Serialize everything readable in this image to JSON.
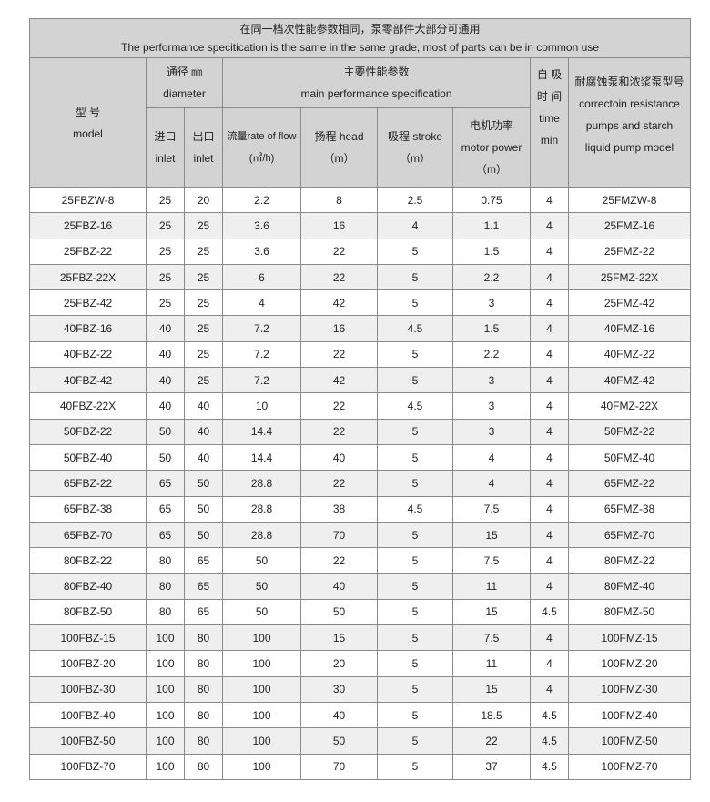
{
  "title": {
    "zh": "在同一档次性能参数相同，泵零部件大部分可通用",
    "en": "The performance specitication is the same in the same grade, most of parts can be in common use"
  },
  "header": {
    "model_zh": "型 号",
    "model_en": "model",
    "diameter_zh": "通径 ㎜",
    "diameter_en": "diameter",
    "main_zh": "主要性能参数",
    "main_en": "main performance specification",
    "time_zh1": "自 吸",
    "time_zh2": "时 间",
    "time_en1": "time",
    "time_en2": "min",
    "alt_zh": "耐腐蚀泵和浓浆泵型号",
    "alt_en1": "correctoin resistance",
    "alt_en2": "pumps and starch",
    "alt_en3": "liquid pump model",
    "inlet_zh": "进口",
    "inlet_en": "inlet",
    "outlet_zh": "出口",
    "outlet_en": "inlet",
    "flow_zh": "流量rate of flow",
    "flow_unit": "(㎥/h)",
    "head_zh": "扬程 head",
    "head_unit": "（m）",
    "stroke_zh": "吸程 stroke",
    "stroke_unit": "（m）",
    "power_zh": "电机功率",
    "power_en": "motor power",
    "power_unit": "（m）"
  },
  "rows": [
    [
      "25FBZW-8",
      "25",
      "20",
      "2.2",
      "8",
      "2.5",
      "0.75",
      "4",
      "25FMZW-8"
    ],
    [
      "25FBZ-16",
      "25",
      "25",
      "3.6",
      "16",
      "4",
      "1.1",
      "4",
      "25FMZ-16"
    ],
    [
      "25FBZ-22",
      "25",
      "25",
      "3.6",
      "22",
      "5",
      "1.5",
      "4",
      "25FMZ-22"
    ],
    [
      "25FBZ-22X",
      "25",
      "25",
      "6",
      "22",
      "5",
      "2.2",
      "4",
      "25FMZ-22X"
    ],
    [
      "25FBZ-42",
      "25",
      "25",
      "4",
      "42",
      "5",
      "3",
      "4",
      "25FMZ-42"
    ],
    [
      "40FBZ-16",
      "40",
      "25",
      "7.2",
      "16",
      "4.5",
      "1.5",
      "4",
      "40FMZ-16"
    ],
    [
      "40FBZ-22",
      "40",
      "25",
      "7.2",
      "22",
      "5",
      "2.2",
      "4",
      "40FMZ-22"
    ],
    [
      "40FBZ-42",
      "40",
      "25",
      "7.2",
      "42",
      "5",
      "3",
      "4",
      "40FMZ-42"
    ],
    [
      "40FBZ-22X",
      "40",
      "40",
      "10",
      "22",
      "4.5",
      "3",
      "4",
      "40FMZ-22X"
    ],
    [
      "50FBZ-22",
      "50",
      "40",
      "14.4",
      "22",
      "5",
      "3",
      "4",
      "50FMZ-22"
    ],
    [
      "50FBZ-40",
      "50",
      "40",
      "14.4",
      "40",
      "5",
      "4",
      "4",
      "50FMZ-40"
    ],
    [
      "65FBZ-22",
      "65",
      "50",
      "28.8",
      "22",
      "5",
      "4",
      "4",
      "65FMZ-22"
    ],
    [
      "65FBZ-38",
      "65",
      "50",
      "28.8",
      "38",
      "4.5",
      "7.5",
      "4",
      "65FMZ-38"
    ],
    [
      "65FBZ-70",
      "65",
      "50",
      "28.8",
      "70",
      "5",
      "15",
      "4",
      "65FMZ-70"
    ],
    [
      "80FBZ-22",
      "80",
      "65",
      "50",
      "22",
      "5",
      "7.5",
      "4",
      "80FMZ-22"
    ],
    [
      "80FBZ-40",
      "80",
      "65",
      "50",
      "40",
      "5",
      "11",
      "4",
      "80FMZ-40"
    ],
    [
      "80FBZ-50",
      "80",
      "65",
      "50",
      "50",
      "5",
      "15",
      "4.5",
      "80FMZ-50"
    ],
    [
      "100FBZ-15",
      "100",
      "80",
      "100",
      "15",
      "5",
      "7.5",
      "4",
      "100FMZ-15"
    ],
    [
      "100FBZ-20",
      "100",
      "80",
      "100",
      "20",
      "5",
      "11",
      "4",
      "100FMZ-20"
    ],
    [
      "100FBZ-30",
      "100",
      "80",
      "100",
      "30",
      "5",
      "15",
      "4",
      "100FMZ-30"
    ],
    [
      "100FBZ-40",
      "100",
      "80",
      "100",
      "40",
      "5",
      "18.5",
      "4.5",
      "100FMZ-40"
    ],
    [
      "100FBZ-50",
      "100",
      "80",
      "100",
      "50",
      "5",
      "22",
      "4.5",
      "100FMZ-50"
    ],
    [
      "100FBZ-70",
      "100",
      "80",
      "100",
      "70",
      "5",
      "37",
      "4.5",
      "100FMZ-70"
    ]
  ]
}
